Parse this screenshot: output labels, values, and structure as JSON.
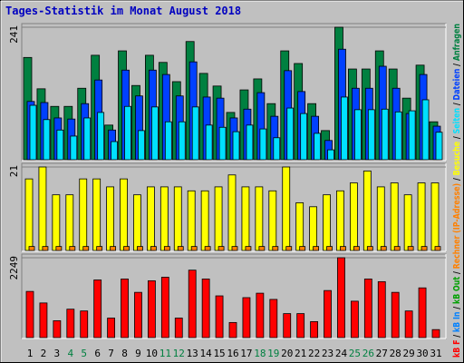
{
  "title": "Tages-Statistik im Monat August 2018",
  "chart_data": [
    {
      "type": "bar",
      "ylim": [
        0,
        241
      ],
      "yticks": [
        241
      ],
      "series": [
        {
          "name": "Anfragen",
          "color": "#008040",
          "values": [
            186,
            129,
            97,
            97,
            130,
            190,
            63,
            198,
            135,
            190,
            177,
            142,
            215,
            157,
            134,
            86,
            127,
            147,
            102,
            198,
            175,
            102,
            53,
            241,
            165,
            165,
            198,
            165,
            112,
            172,
            69
          ]
        },
        {
          "name": "Dateien",
          "color": "#0040ff",
          "values": [
            106,
            104,
            76,
            74,
            102,
            145,
            54,
            163,
            116,
            163,
            155,
            116,
            178,
            114,
            112,
            76,
            92,
            122,
            79,
            162,
            124,
            79,
            35,
            201,
            130,
            130,
            170,
            130,
            84,
            155,
            61
          ]
        },
        {
          "name": "Seiten",
          "color": "#00e0ff",
          "values": [
            99,
            73,
            54,
            43,
            76,
            86,
            33,
            97,
            53,
            96,
            69,
            69,
            96,
            63,
            59,
            51,
            63,
            56,
            40,
            94,
            84,
            48,
            18,
            114,
            91,
            91,
            92,
            87,
            89,
            109,
            50
          ]
        }
      ]
    },
    {
      "type": "bar",
      "ylim": [
        0,
        21
      ],
      "yticks": [
        21
      ],
      "series": [
        {
          "name": "Besuche",
          "color": "#ffff00",
          "values": [
            18,
            21,
            14,
            14,
            18,
            18,
            16,
            18,
            14,
            16,
            16,
            16,
            15,
            15,
            16,
            19,
            16,
            16,
            15,
            21,
            12,
            11,
            14,
            15,
            17,
            20,
            16,
            17,
            14,
            17,
            17
          ]
        },
        {
          "name": "Rechner (IP-Adresse)",
          "color": "#ff8000",
          "values": [
            1,
            1,
            1,
            1,
            1,
            1,
            1,
            1,
            1,
            1,
            1,
            1,
            1,
            1,
            1,
            1,
            1,
            1,
            1,
            1,
            1,
            1,
            1,
            1,
            1,
            1,
            1,
            1,
            1,
            1,
            1
          ]
        }
      ]
    },
    {
      "type": "bar",
      "ylim": [
        0,
        2249
      ],
      "yticks": [
        2249
      ],
      "categories": [
        "1",
        "2",
        "3",
        "4",
        "5",
        "6",
        "7",
        "8",
        "9",
        "10",
        "11",
        "12",
        "13",
        "14",
        "15",
        "16",
        "17",
        "18",
        "19",
        "20",
        "21",
        "22",
        "23",
        "24",
        "25",
        "26",
        "27",
        "28",
        "29",
        "30",
        "31"
      ],
      "category_colors": [
        "#000000",
        "#000000",
        "#000000",
        "#008040",
        "#008040",
        "#000000",
        "#000000",
        "#000000",
        "#000000",
        "#000000",
        "#008040",
        "#008040",
        "#000000",
        "#000000",
        "#000000",
        "#000000",
        "#000000",
        "#008040",
        "#008040",
        "#000000",
        "#000000",
        "#000000",
        "#000000",
        "#000000",
        "#008040",
        "#008040",
        "#000000",
        "#000000",
        "#000000",
        "#000000",
        "#000000"
      ],
      "series": [
        {
          "name": "kB F",
          "color": "#ff0000",
          "values": [
            1300,
            975,
            475,
            800,
            750,
            1624,
            550,
            1650,
            1274,
            1600,
            1700,
            550,
            1899,
            1650,
            1175,
            425,
            1125,
            1250,
            1075,
            675,
            675,
            450,
            1325,
            2249,
            1025,
            1650,
            1575,
            1274,
            750,
            1400,
            225
          ]
        }
      ],
      "legend_extra": [
        {
          "name": "kB In",
          "color": "#0080ff"
        },
        {
          "name": "kB Out",
          "color": "#00a000"
        }
      ]
    }
  ]
}
